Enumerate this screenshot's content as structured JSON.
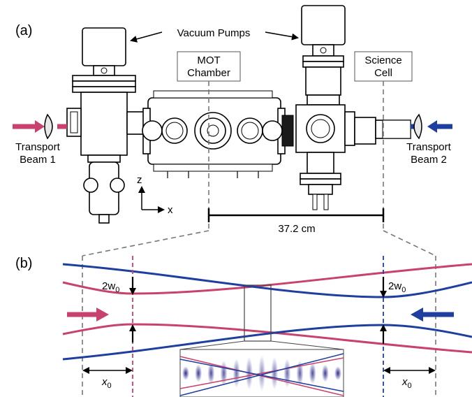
{
  "panel_a": {
    "label": "(a)",
    "vacuum_pumps": "Vacuum Pumps",
    "mot_chamber": [
      "MOT",
      "Chamber"
    ],
    "science_cell": [
      "Science",
      "Cell"
    ],
    "transport_beam_1": [
      "Transport",
      "Beam 1"
    ],
    "transport_beam_2": [
      "Transport",
      "Beam 2"
    ],
    "axis_z": "z",
    "axis_x": "x",
    "distance": "37.2 cm"
  },
  "panel_b": {
    "label": "(b)",
    "waist_left": [
      "2w",
      "0"
    ],
    "waist_right": [
      "2w",
      "0"
    ],
    "offset_left": [
      "x",
      "0"
    ],
    "offset_right": [
      "x",
      "0"
    ]
  },
  "colors": {
    "beam_red": "#c8426e",
    "beam_blue": "#1f3f9f",
    "dashed_gray": "#777777",
    "lattice": "#3a3aa0"
  }
}
